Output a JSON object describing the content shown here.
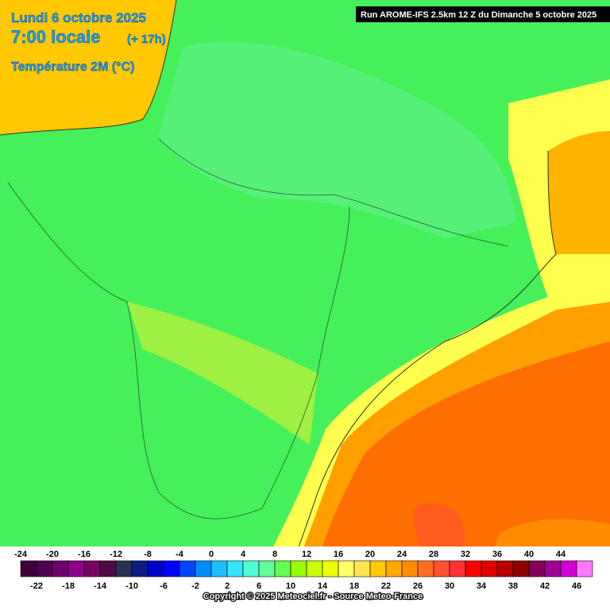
{
  "header": {
    "date": "Lundi 6 octobre 2025",
    "time": "7:00 locale",
    "lead": "(+ 17h)",
    "parameter": "Température 2M (°C)",
    "run": "Run AROME-IFS 2.5km 12 Z du Dimanche 5 octobre 2025"
  },
  "legend": [
    {
      "value": -24,
      "color": "#3c003c"
    },
    {
      "value": -22,
      "color": "#500050"
    },
    {
      "value": -20,
      "color": "#6e006e"
    },
    {
      "value": -18,
      "color": "#8c008c"
    },
    {
      "value": -16,
      "color": "#780064"
    },
    {
      "value": -14,
      "color": "#500a46"
    },
    {
      "value": -12,
      "color": "#283250"
    },
    {
      "value": -10,
      "color": "#0a1e82"
    },
    {
      "value": -8,
      "color": "#0000c8"
    },
    {
      "value": -6,
      "color": "#0000ff"
    },
    {
      "value": -4,
      "color": "#0046ff"
    },
    {
      "value": -2,
      "color": "#008cff"
    },
    {
      "value": 0,
      "color": "#1ebeff"
    },
    {
      "value": 2,
      "color": "#32e6ff"
    },
    {
      "value": 4,
      "color": "#50ffd2"
    },
    {
      "value": 6,
      "color": "#64ff96"
    },
    {
      "value": 8,
      "color": "#64ff50"
    },
    {
      "value": 10,
      "color": "#96ff00"
    },
    {
      "value": 12,
      "color": "#c8ff00"
    },
    {
      "value": 14,
      "color": "#f0ff00"
    },
    {
      "value": 16,
      "color": "#ffff64"
    },
    {
      "value": 18,
      "color": "#ffe650"
    },
    {
      "value": 20,
      "color": "#ffc800"
    },
    {
      "value": 22,
      "color": "#ffaa00"
    },
    {
      "value": 24,
      "color": "#ff8c00"
    },
    {
      "value": 26,
      "color": "#ff6e1e"
    },
    {
      "value": 28,
      "color": "#ff5032"
    },
    {
      "value": 30,
      "color": "#ff3232"
    },
    {
      "value": 32,
      "color": "#ff0000"
    },
    {
      "value": 34,
      "color": "#dc0000"
    },
    {
      "value": 36,
      "color": "#b40000"
    },
    {
      "value": 38,
      "color": "#8c0000"
    },
    {
      "value": 40,
      "color": "#82005a"
    },
    {
      "value": 42,
      "color": "#a00096"
    },
    {
      "value": 44,
      "color": "#d200d2"
    },
    {
      "value": 46,
      "color": "#ff78ff"
    }
  ],
  "footer": {
    "copyright": "Copyright © 2025 Meteociel.fr - Source Meteo-France"
  }
}
